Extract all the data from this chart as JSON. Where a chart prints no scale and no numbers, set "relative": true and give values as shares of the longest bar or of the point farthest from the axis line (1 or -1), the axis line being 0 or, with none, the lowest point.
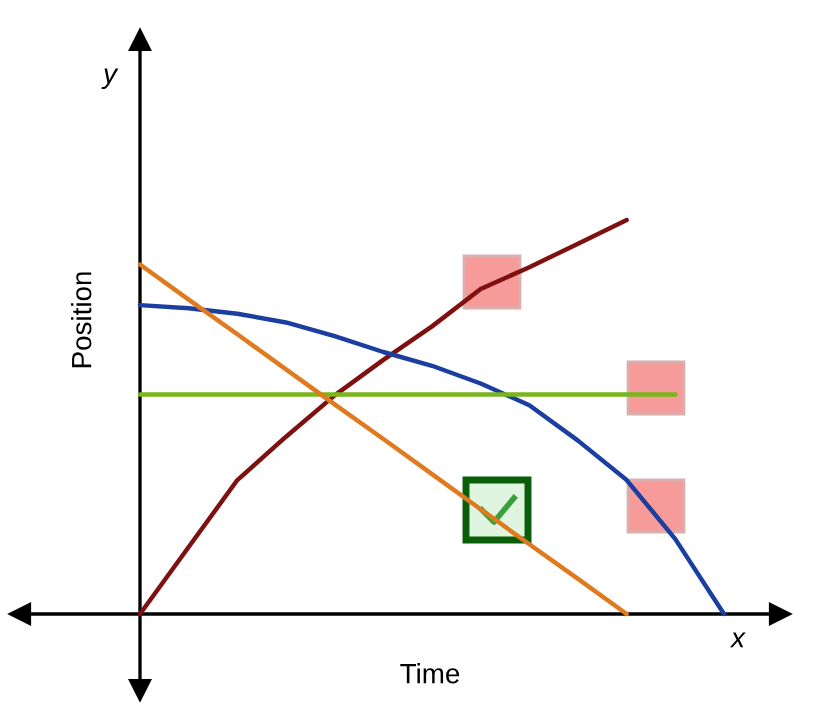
{
  "chart_data": {
    "type": "line",
    "relative": true,
    "xlabel": "Time",
    "ylabel": "Position",
    "annotations": [
      "y",
      "x"
    ],
    "categories": [
      null,
      null,
      null,
      null,
      null,
      null,
      null,
      null,
      null,
      null,
      null,
      null,
      null
    ],
    "series": [
      {
        "color": "#7f1010",
        "values": [
          0,
          0.17,
          0.34,
          0.45,
          0.555,
          0.645,
          0.73,
          0.825,
          0.88,
          0.94,
          1,
          null,
          null
        ]
      },
      {
        "color": "#1a3fa0",
        "values": [
          0.784,
          0.776,
          0.762,
          0.74,
          0.705,
          0.665,
          0.63,
          0.585,
          0.53,
          0.44,
          0.34,
          0.19,
          0
        ]
      },
      {
        "color": "#7ab51d",
        "values": [
          0.557,
          0.557,
          0.557,
          0.557,
          0.557,
          0.557,
          0.557,
          0.557,
          0.557,
          0.557,
          0.557,
          0.557,
          null
        ]
      },
      {
        "color": "#e07a1f",
        "values": [
          0.887,
          0.798,
          0.71,
          0.621,
          0.532,
          0.444,
          0.355,
          0.266,
          0.177,
          0.089,
          0,
          null,
          null
        ]
      }
    ],
    "marker": "none",
    "line_style": "solid"
  }
}
